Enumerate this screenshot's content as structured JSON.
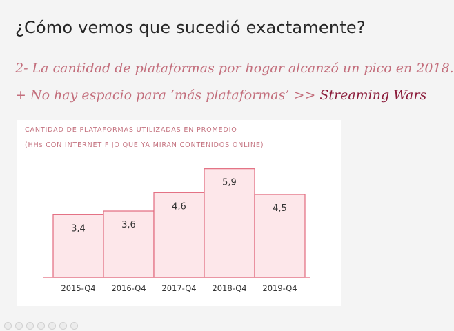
{
  "slide": {
    "title": "¿Cómo vemos que sucedió exactamente?",
    "line1": "2- La cantidad de plataformas por hogar alcanzó un pico en 2018.",
    "line2_prefix": "+ No hay espacio para ‘más plataformas’ >> ",
    "line2_highlight": "Streaming Wars"
  },
  "colors": {
    "bar_fill": "#fde7ea",
    "bar_stroke": "#e26a7e",
    "axis": "#e26a7e",
    "label_text": "#333333",
    "accent_text": "#c36e7c",
    "highlight_text": "#8b1b3a"
  },
  "chart_data": {
    "type": "bar",
    "title": "CANTIDAD DE PLATAFORMAS UTILIZADAS EN PROMEDIO",
    "subtitle": "(HHs CON INTERNET FIJO QUE YA MIRAN CONTENIDOS ONLINE)",
    "categories": [
      "2015-Q4",
      "2016-Q4",
      "2017-Q4",
      "2018-Q4",
      "2019-Q4"
    ],
    "values": [
      3.4,
      3.6,
      4.6,
      5.9,
      4.5
    ],
    "value_labels": [
      "3,4",
      "3,6",
      "4,6",
      "5,9",
      "4,5"
    ],
    "ylim": [
      0,
      6.3
    ],
    "grid": false,
    "legend": "none"
  }
}
